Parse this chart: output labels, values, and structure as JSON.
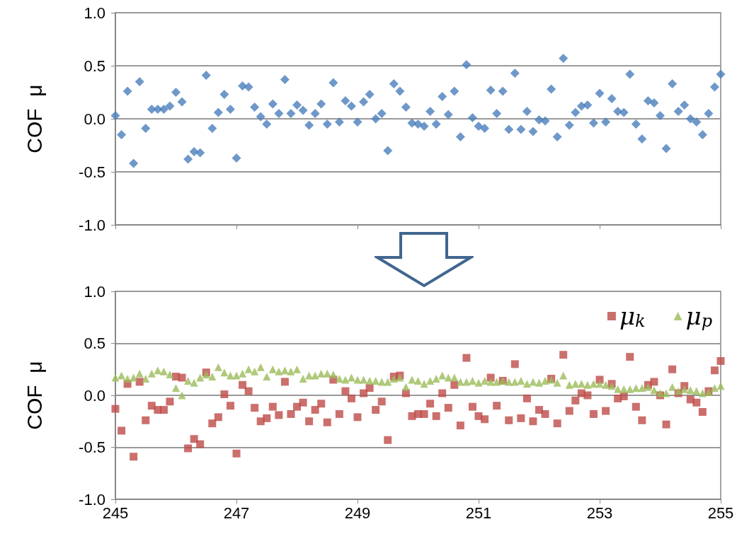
{
  "chart_data": [
    {
      "type": "scatter",
      "ylabel": "COF  μ",
      "xlim": [
        245,
        255
      ],
      "xticks": [
        245,
        247,
        249,
        251,
        253,
        255
      ],
      "ylim": [
        -1,
        1
      ],
      "yticks": [
        {
          "value": -1,
          "label": "-1.0"
        },
        {
          "value": -0.5,
          "label": "-0.5"
        },
        {
          "value": 0,
          "label": "0.0"
        },
        {
          "value": 0.5,
          "label": "0.5"
        },
        {
          "value": 1,
          "label": "1.0"
        }
      ],
      "grid": "y",
      "tick_labels": "y",
      "legend": false,
      "marker": "diamond",
      "x": [
        245.0,
        245.1,
        245.2,
        245.3,
        245.4,
        245.5,
        245.6,
        245.7,
        245.8,
        245.9,
        246.0,
        246.1,
        246.2,
        246.3,
        246.4,
        246.5,
        246.6,
        246.7,
        246.8,
        246.9,
        247.0,
        247.1,
        247.2,
        247.3,
        247.4,
        247.5,
        247.6,
        247.7,
        247.8,
        247.9,
        248.0,
        248.1,
        248.2,
        248.3,
        248.4,
        248.5,
        248.6,
        248.7,
        248.8,
        248.9,
        249.0,
        249.1,
        249.2,
        249.3,
        249.4,
        249.5,
        249.6,
        249.7,
        249.8,
        249.9,
        250.0,
        250.1,
        250.2,
        250.3,
        250.4,
        250.5,
        250.6,
        250.7,
        250.8,
        250.9,
        251.0,
        251.1,
        251.2,
        251.3,
        251.4,
        251.5,
        251.6,
        251.7,
        251.8,
        251.9,
        252.0,
        252.1,
        252.2,
        252.3,
        252.4,
        252.5,
        252.6,
        252.7,
        252.8,
        252.9,
        253.0,
        253.1,
        253.2,
        253.3,
        253.4,
        253.5,
        253.6,
        253.7,
        253.8,
        253.9,
        254.0,
        254.1,
        254.2,
        254.3,
        254.4,
        254.5,
        254.6,
        254.7,
        254.8,
        254.9,
        255.0
      ],
      "series": [
        {
          "color": "#4a7ebb",
          "values": [
            0.03,
            -0.15,
            0.26,
            -0.42,
            0.35,
            -0.09,
            0.09,
            0.09,
            0.09,
            0.12,
            0.25,
            0.16,
            -0.38,
            -0.31,
            -0.32,
            0.41,
            -0.09,
            0.06,
            0.23,
            0.09,
            -0.37,
            0.31,
            0.3,
            0.11,
            0.02,
            -0.05,
            0.14,
            0.05,
            0.37,
            0.05,
            0.13,
            0.08,
            -0.06,
            0.05,
            0.14,
            -0.05,
            0.34,
            -0.03,
            0.17,
            0.12,
            -0.03,
            0.16,
            0.23,
            0.0,
            0.05,
            -0.3,
            0.33,
            0.26,
            0.11,
            -0.04,
            -0.05,
            -0.07,
            0.07,
            -0.05,
            0.21,
            0.04,
            0.26,
            -0.17,
            0.51,
            0.01,
            -0.07,
            -0.09,
            0.27,
            0.05,
            0.26,
            -0.1,
            0.43,
            -0.1,
            0.07,
            -0.12,
            -0.01,
            -0.02,
            0.28,
            -0.17,
            0.57,
            -0.06,
            0.06,
            0.12,
            0.13,
            -0.04,
            0.24,
            -0.03,
            0.19,
            0.07,
            0.06,
            0.42,
            -0.05,
            -0.19,
            0.17,
            0.15,
            0.03,
            -0.28,
            0.33,
            0.07,
            0.13,
            0.0,
            -0.03,
            -0.15,
            0.05,
            0.3,
            0.42
          ]
        }
      ]
    },
    {
      "type": "scatter",
      "ylabel": "COF  μ",
      "xlim": [
        245,
        255
      ],
      "xticks": [
        245,
        247,
        249,
        251,
        253,
        255
      ],
      "ylim": [
        -1,
        1
      ],
      "yticks": [
        {
          "value": -1,
          "label": "-1.0"
        },
        {
          "value": -0.5,
          "label": "-0.5"
        },
        {
          "value": 0,
          "label": "0.0"
        },
        {
          "value": 0.5,
          "label": "0.5"
        },
        {
          "value": 1,
          "label": "1.0"
        }
      ],
      "grid": "y",
      "legend": "top right",
      "x": [
        245.0,
        245.1,
        245.2,
        245.3,
        245.4,
        245.5,
        245.6,
        245.7,
        245.8,
        245.9,
        246.0,
        246.1,
        246.2,
        246.3,
        246.4,
        246.5,
        246.6,
        246.7,
        246.8,
        246.9,
        247.0,
        247.1,
        247.2,
        247.3,
        247.4,
        247.5,
        247.6,
        247.7,
        247.8,
        247.9,
        248.0,
        248.1,
        248.2,
        248.3,
        248.4,
        248.5,
        248.6,
        248.7,
        248.8,
        248.9,
        249.0,
        249.1,
        249.2,
        249.3,
        249.4,
        249.5,
        249.6,
        249.7,
        249.8,
        249.9,
        250.0,
        250.1,
        250.2,
        250.3,
        250.4,
        250.5,
        250.6,
        250.7,
        250.8,
        250.9,
        251.0,
        251.1,
        251.2,
        251.3,
        251.4,
        251.5,
        251.6,
        251.7,
        251.8,
        251.9,
        252.0,
        252.1,
        252.2,
        252.3,
        252.4,
        252.5,
        252.6,
        252.7,
        252.8,
        252.9,
        253.0,
        253.1,
        253.2,
        253.3,
        253.4,
        253.5,
        253.6,
        253.7,
        253.8,
        253.9,
        254.0,
        254.1,
        254.2,
        254.3,
        254.4,
        254.5,
        254.6,
        254.7,
        254.8,
        254.9,
        255.0
      ],
      "series": [
        {
          "name": "μ$_{k}$",
          "color": "#be4b48",
          "marker": "square",
          "values": [
            -0.13,
            -0.34,
            0.11,
            -0.59,
            0.13,
            -0.24,
            -0.1,
            -0.14,
            -0.14,
            -0.06,
            0.18,
            0.17,
            -0.51,
            -0.42,
            -0.47,
            0.22,
            -0.27,
            -0.21,
            0.01,
            -0.1,
            -0.56,
            0.1,
            0.04,
            -0.12,
            -0.25,
            -0.22,
            -0.11,
            -0.19,
            0.13,
            -0.18,
            -0.11,
            -0.07,
            -0.25,
            -0.14,
            -0.08,
            -0.26,
            0.15,
            -0.18,
            0.04,
            -0.03,
            -0.21,
            0.02,
            0.07,
            -0.14,
            -0.06,
            -0.43,
            0.18,
            0.19,
            0.02,
            -0.2,
            -0.18,
            -0.18,
            -0.08,
            -0.2,
            0.02,
            -0.12,
            0.1,
            -0.29,
            0.36,
            -0.11,
            -0.2,
            -0.23,
            0.17,
            -0.1,
            0.14,
            -0.24,
            0.3,
            -0.22,
            -0.03,
            -0.25,
            -0.14,
            -0.18,
            0.16,
            -0.27,
            0.39,
            -0.15,
            -0.05,
            0.02,
            0.0,
            -0.18,
            0.15,
            -0.15,
            0.11,
            -0.03,
            -0.01,
            0.37,
            -0.11,
            -0.24,
            0.1,
            0.13,
            0.0,
            -0.28,
            0.25,
            0.02,
            0.09,
            -0.04,
            -0.07,
            -0.16,
            0.04,
            0.24,
            0.33
          ]
        },
        {
          "name": "μ$_{p}$",
          "color": "#9bbb59",
          "marker": "triangle",
          "values": [
            0.17,
            0.19,
            0.16,
            0.17,
            0.21,
            0.16,
            0.21,
            0.24,
            0.23,
            0.2,
            0.07,
            0.0,
            0.14,
            0.12,
            0.17,
            0.2,
            0.18,
            0.27,
            0.22,
            0.19,
            0.19,
            0.21,
            0.25,
            0.23,
            0.27,
            0.18,
            0.25,
            0.23,
            0.24,
            0.23,
            0.25,
            0.16,
            0.19,
            0.19,
            0.21,
            0.21,
            0.2,
            0.16,
            0.15,
            0.17,
            0.15,
            0.15,
            0.14,
            0.14,
            0.13,
            0.13,
            0.16,
            0.17,
            0.08,
            0.15,
            0.14,
            0.11,
            0.14,
            0.16,
            0.19,
            0.17,
            0.17,
            0.13,
            0.13,
            0.14,
            0.12,
            0.14,
            0.13,
            0.13,
            0.14,
            0.13,
            0.13,
            0.14,
            0.11,
            0.13,
            0.12,
            0.14,
            0.15,
            0.12,
            0.19,
            0.1,
            0.11,
            0.11,
            0.1,
            0.11,
            0.11,
            0.1,
            0.09,
            0.06,
            0.06,
            0.06,
            0.07,
            0.07,
            0.08,
            0.05,
            0.02,
            0.02,
            0.08,
            0.04,
            0.06,
            0.05,
            0.04,
            0.02,
            0.03,
            0.07,
            0.09
          ]
        }
      ]
    }
  ]
}
